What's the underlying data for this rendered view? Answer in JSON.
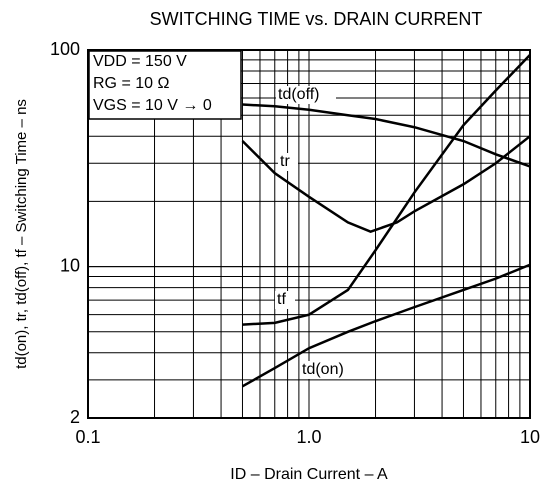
{
  "chart_data": {
    "type": "line",
    "title": "SWITCHING TIME vs. DRAIN CURRENT",
    "xlabel": "ID – Drain Current – A",
    "ylabel": "td(on), tr, td(off), tf – Switching Time – ns",
    "annotations": [
      "VDD = 150 V",
      "RG = 10 Ω",
      "VGS = 10 V → 0"
    ],
    "xscale": "log",
    "yscale": "log",
    "grid": true,
    "xlim": [
      0.1,
      10
    ],
    "ylim": [
      2,
      100
    ],
    "xticks": [
      0.1,
      {
        "value": 1,
        "label": "1.0"
      },
      10
    ],
    "yticks": [
      2,
      10,
      100
    ],
    "series": [
      {
        "name": "td(off)",
        "color": "#000000",
        "x": [
          0.5,
          0.7,
          1,
          1.5,
          2,
          3,
          5,
          7,
          10
        ],
        "values": [
          56,
          55,
          53,
          50,
          48,
          44,
          38,
          33,
          29
        ]
      },
      {
        "name": "tr",
        "color": "#000000",
        "x": [
          0.5,
          0.7,
          1,
          1.5,
          1.9,
          2.5,
          3,
          5,
          7,
          10
        ],
        "values": [
          38,
          27,
          21,
          16,
          14.5,
          16,
          18,
          24,
          30,
          40
        ]
      },
      {
        "name": "tf",
        "color": "#000000",
        "x": [
          0.5,
          0.7,
          1,
          1.5,
          2,
          3,
          5,
          7,
          10
        ],
        "values": [
          5.4,
          5.5,
          6,
          7.8,
          11.9,
          22,
          45,
          65,
          95
        ]
      },
      {
        "name": "td(on)",
        "color": "#000000",
        "x": [
          0.5,
          0.7,
          1,
          1.5,
          2,
          3,
          5,
          7,
          10
        ],
        "values": [
          2.8,
          3.4,
          4.2,
          5,
          5.6,
          6.5,
          7.8,
          8.8,
          10.2
        ]
      }
    ]
  }
}
